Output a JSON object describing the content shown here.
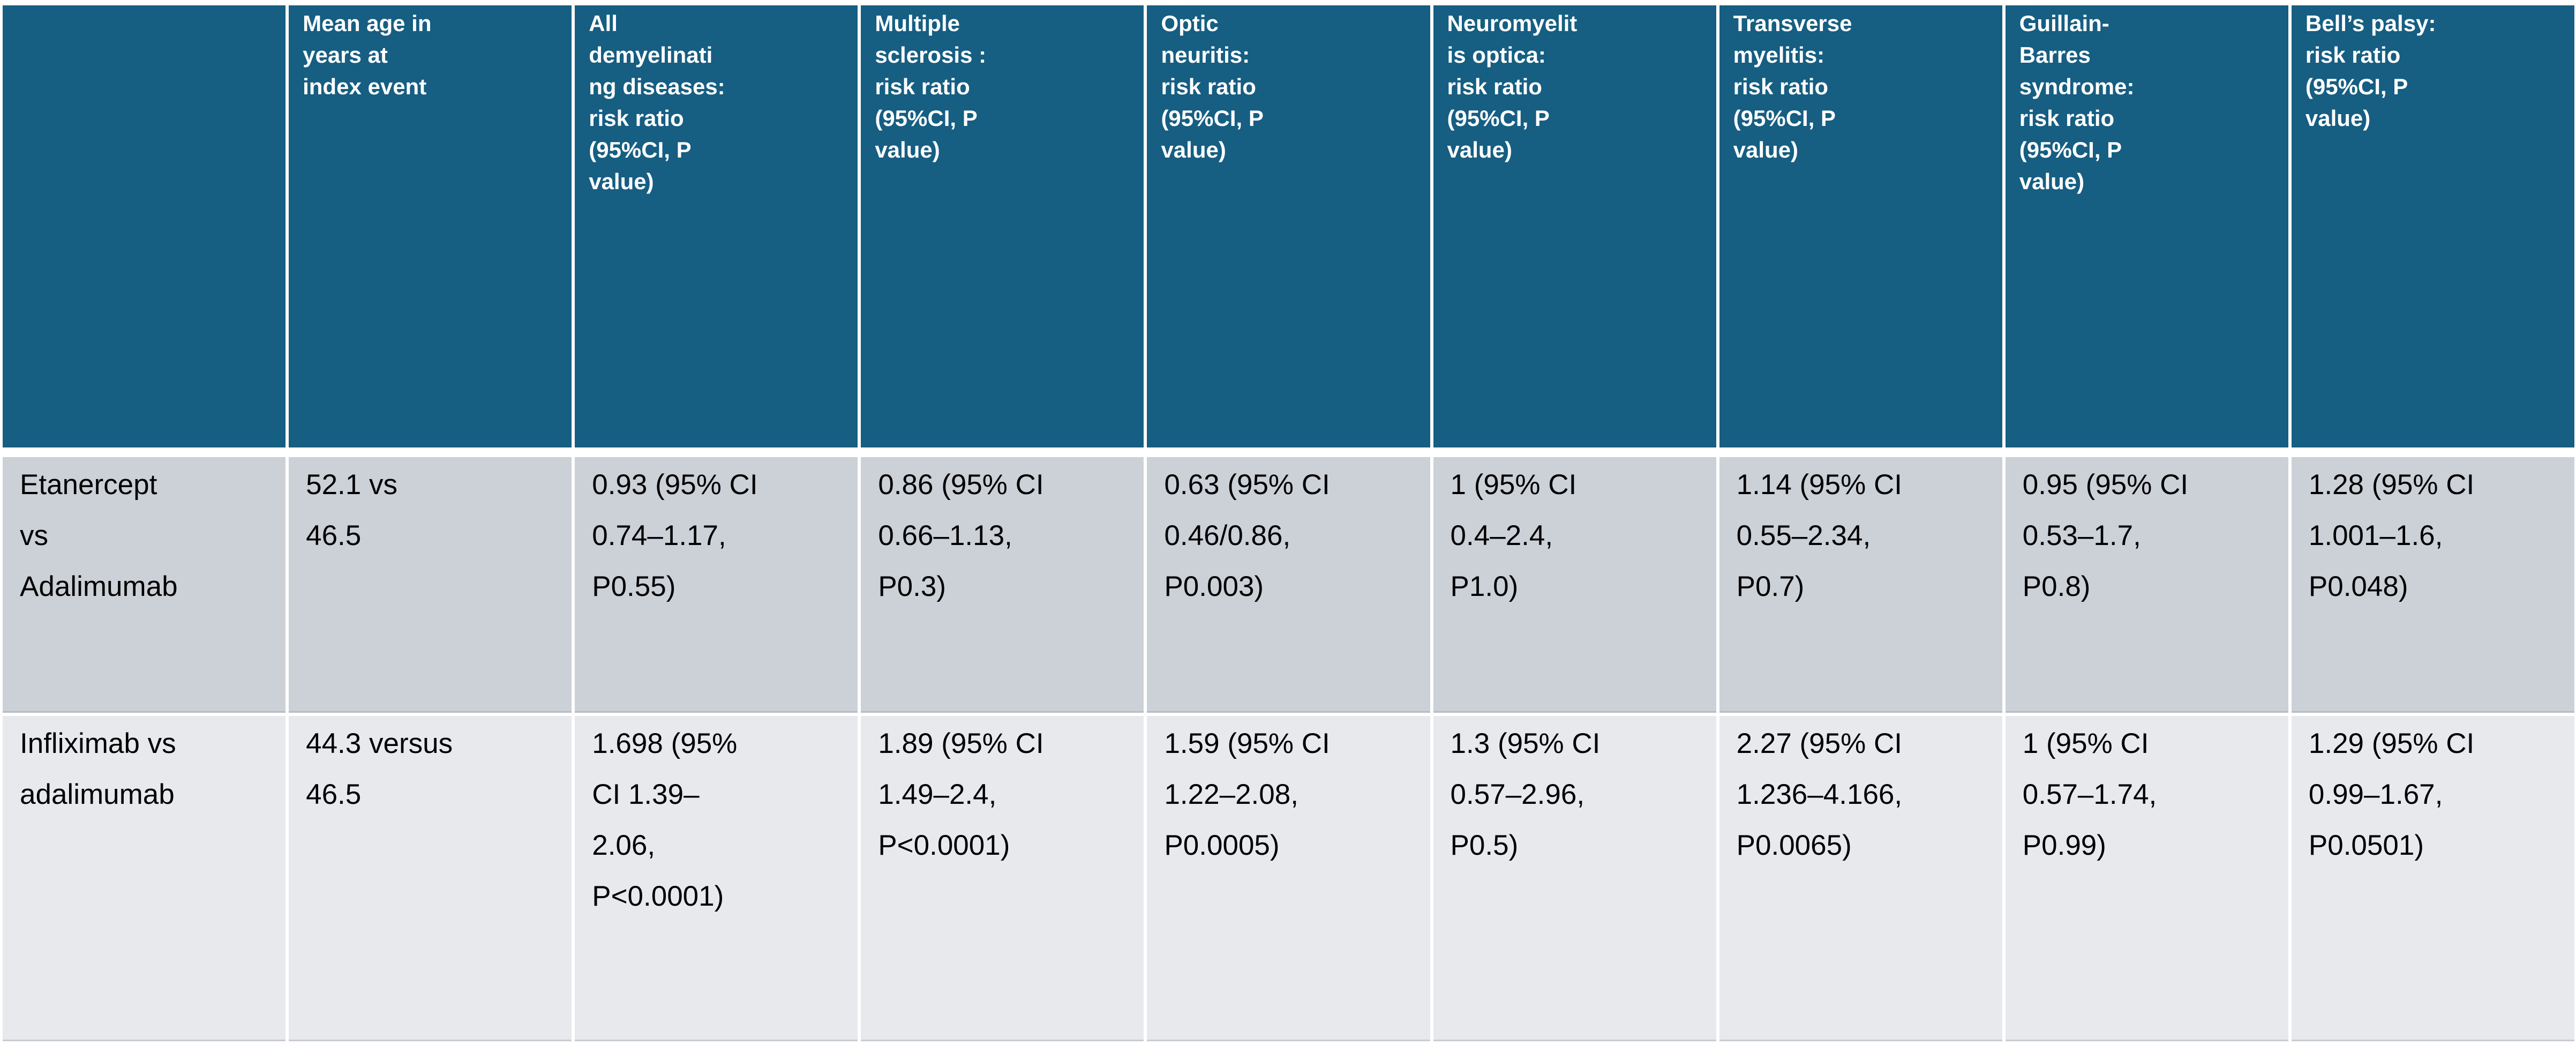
{
  "colors": {
    "header_background": "#165E82",
    "header_text": "#FFFFFF",
    "row_band_dark": "#CCD0D7",
    "row_band_light": "#E7E9ED",
    "grid_lines": "#FFFFFF",
    "body_text": "#000000"
  },
  "table": {
    "columns": [
      {
        "key": "row-label",
        "label": ""
      },
      {
        "key": "mean-age",
        "label": "Mean age in\nyears at\nindex event"
      },
      {
        "key": "all-demyelinating-diseases",
        "label": "All\ndemyelinati\nng diseases:\nrisk ratio\n(95%CI, P\nvalue)"
      },
      {
        "key": "multiple-sclerosis",
        "label": "Multiple\nsclerosis :\nrisk ratio\n(95%CI, P\nvalue)"
      },
      {
        "key": "optic-neuritis",
        "label": "Optic\nneuritis:\nrisk ratio\n(95%CI, P\nvalue)"
      },
      {
        "key": "neuromyelitis-optica",
        "label": "Neuromyelit\nis optica:\nrisk ratio\n(95%CI, P\nvalue)"
      },
      {
        "key": "transverse-myelitis",
        "label": "Transverse\nmyelitis:\nrisk ratio\n(95%CI, P\nvalue)"
      },
      {
        "key": "guillain-barres-syndrome",
        "label": "Guillain-\nBarres\nsyndrome:\nrisk ratio\n(95%CI, P\nvalue)"
      },
      {
        "key": "bells-palsy",
        "label": "Bell’s palsy:\nrisk ratio\n(95%CI, P\nvalue)"
      }
    ],
    "rows": [
      {
        "key": "etanercept-vs-adalimumab",
        "cells": [
          "Etanercept\nvs\nAdalimumab",
          "52.1 vs\n46.5",
          "0.93 (95% CI\n0.74–1.17,\nP0.55)",
          "0.86 (95% CI\n0.66–1.13,\nP0.3)",
          "0.63 (95% CI\n0.46/0.86,\nP0.003)",
          "1 (95% CI\n0.4–2.4,\nP1.0)",
          "1.14 (95% CI\n0.55–2.34,\nP0.7)",
          "0.95 (95% CI\n0.53–1.7,\nP0.8)",
          "1.28 (95% CI\n1.001–1.6,\nP0.048)"
        ]
      },
      {
        "key": "infliximab-vs-adalimumab",
        "cells": [
          "Infliximab vs\nadalimumab",
          "44.3 versus\n46.5",
          "1.698 (95%\nCI 1.39–\n2.06,\nP<0.0001)",
          "1.89 (95% CI\n1.49–2.4,\nP<0.0001)",
          "1.59 (95% CI\n1.22–2.08,\nP0.0005)",
          "1.3 (95% CI\n0.57–2.96,\nP0.5)",
          "2.27 (95% CI\n1.236–4.166,\nP0.0065)",
          "1 (95% CI\n0.57–1.74,\nP0.99)",
          "1.29 (95% CI\n0.99–1.67,\nP0.0501)"
        ]
      }
    ]
  }
}
